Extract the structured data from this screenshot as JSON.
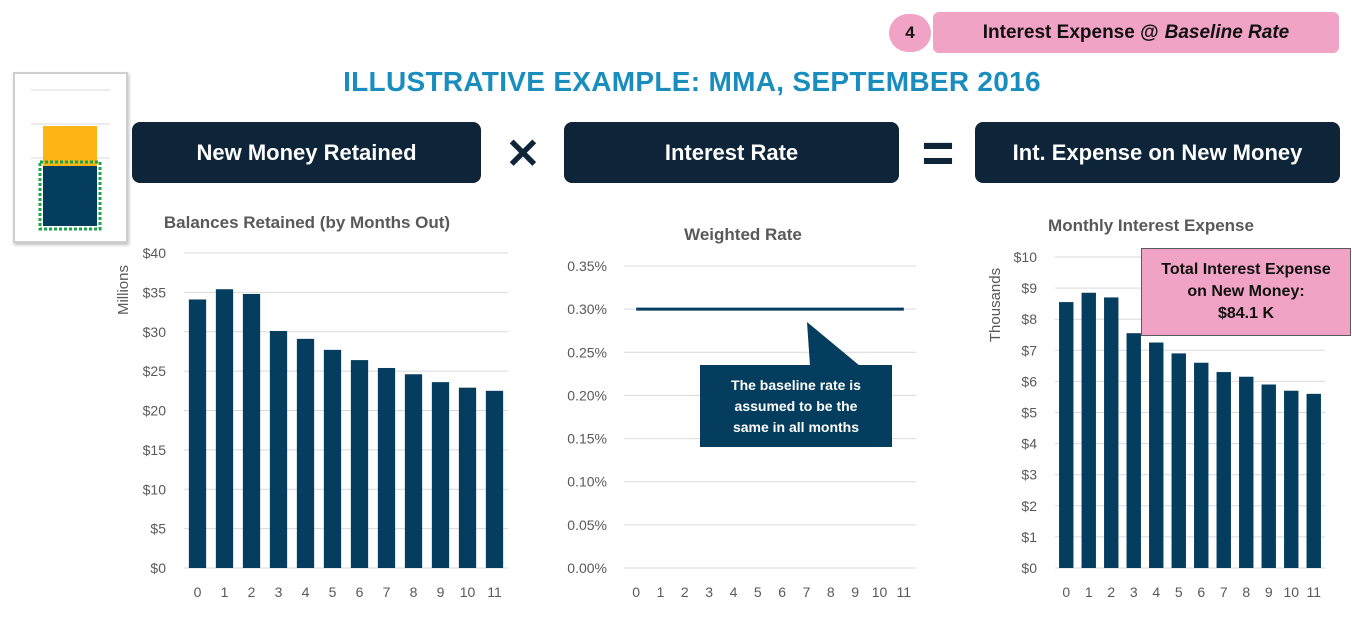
{
  "step": {
    "number": "4",
    "label": "Interest Expense @ ",
    "label_em": "Baseline Rate"
  },
  "title": "ILLUSTRATIVE EXAMPLE: MMA, SEPTEMBER 2016",
  "formula": {
    "left": "New Money Retained",
    "times": "✕",
    "middle": "Interest Rate",
    "equals": "=",
    "right": "Int. Expense on New Money"
  },
  "callouts": {
    "rate_note": [
      "The baseline rate is",
      "assumed to be the",
      "same in all months"
    ],
    "total": [
      "Total Interest Expense",
      "on New Money:",
      "$84.1 K"
    ]
  },
  "colors": {
    "bar": "#043d5d",
    "title": "#1a8dbf",
    "header": "#0d2439",
    "pink": "#f0a3c4",
    "gold": "#fdb515",
    "green": "#1aa34a"
  },
  "chart_data": [
    {
      "type": "bar",
      "title": "Balances Retained (by Months Out)",
      "ylabel": "Millions",
      "categories": [
        "0",
        "1",
        "2",
        "3",
        "4",
        "5",
        "6",
        "7",
        "8",
        "9",
        "10",
        "11"
      ],
      "values": [
        34.1,
        35.4,
        34.8,
        30.1,
        29.1,
        27.7,
        26.4,
        25.4,
        24.6,
        23.6,
        22.9,
        22.5
      ],
      "ylim": [
        0,
        40
      ],
      "yticks": [
        "$0",
        "$5",
        "$10",
        "$15",
        "$20",
        "$25",
        "$30",
        "$35",
        "$40"
      ],
      "grid": true
    },
    {
      "type": "line",
      "title": "Weighted Rate",
      "categories": [
        "0",
        "1",
        "2",
        "3",
        "4",
        "5",
        "6",
        "7",
        "8",
        "9",
        "10",
        "11"
      ],
      "values": [
        0.3,
        0.3,
        0.3,
        0.3,
        0.3,
        0.3,
        0.3,
        0.3,
        0.3,
        0.3,
        0.3,
        0.3
      ],
      "ylim": [
        0,
        0.35
      ],
      "yticks": [
        "0.00%",
        "0.05%",
        "0.10%",
        "0.15%",
        "0.20%",
        "0.25%",
        "0.30%",
        "0.35%"
      ],
      "grid": true
    },
    {
      "type": "bar",
      "title": "Monthly Interest Expense",
      "ylabel": "Thousands",
      "categories": [
        "0",
        "1",
        "2",
        "3",
        "4",
        "5",
        "6",
        "7",
        "8",
        "9",
        "10",
        "11"
      ],
      "values": [
        8.55,
        8.85,
        8.7,
        7.55,
        7.25,
        6.9,
        6.6,
        6.3,
        6.15,
        5.9,
        5.7,
        5.6
      ],
      "ylim": [
        0,
        10
      ],
      "yticks": [
        "$0",
        "$1",
        "$2",
        "$3",
        "$4",
        "$5",
        "$6",
        "$7",
        "$8",
        "$9",
        "$10"
      ],
      "grid": true
    }
  ]
}
